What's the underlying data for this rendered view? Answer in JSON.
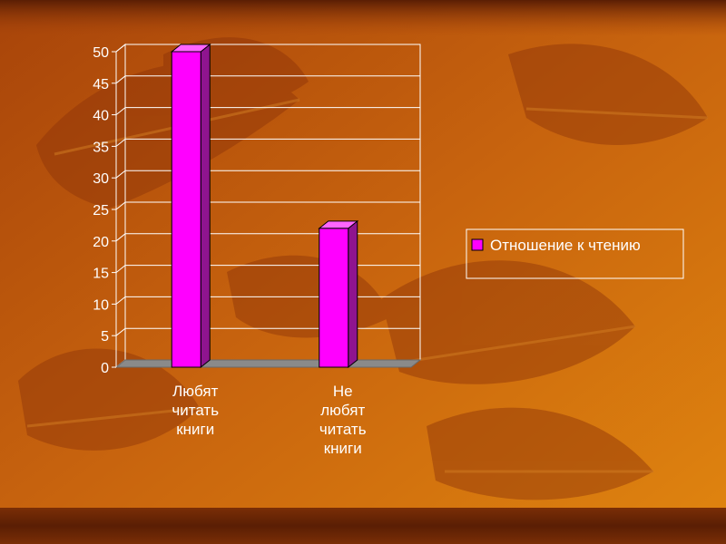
{
  "chart_data": {
    "type": "bar",
    "categories": [
      [
        "Любят",
        "читать",
        "книги"
      ],
      [
        "Не",
        "любят",
        "читать",
        "книги"
      ]
    ],
    "series": [
      {
        "name": "Отношение к чтению",
        "values": [
          50,
          22
        ]
      }
    ],
    "yticks": [
      "0",
      "5",
      "10",
      "15",
      "20",
      "25",
      "30",
      "35",
      "40",
      "45",
      "50"
    ],
    "ylim": [
      0,
      50
    ],
    "grid": true,
    "legend": "right",
    "title": "",
    "xlabel": "",
    "ylabel": ""
  },
  "colors": {
    "bar_front": "#ff00ff",
    "bar_side": "#8f148f",
    "bar_top": "#ff66ff",
    "floor": "#8a8a8a",
    "gridline": "#ffffff",
    "text": "#ffffff"
  }
}
